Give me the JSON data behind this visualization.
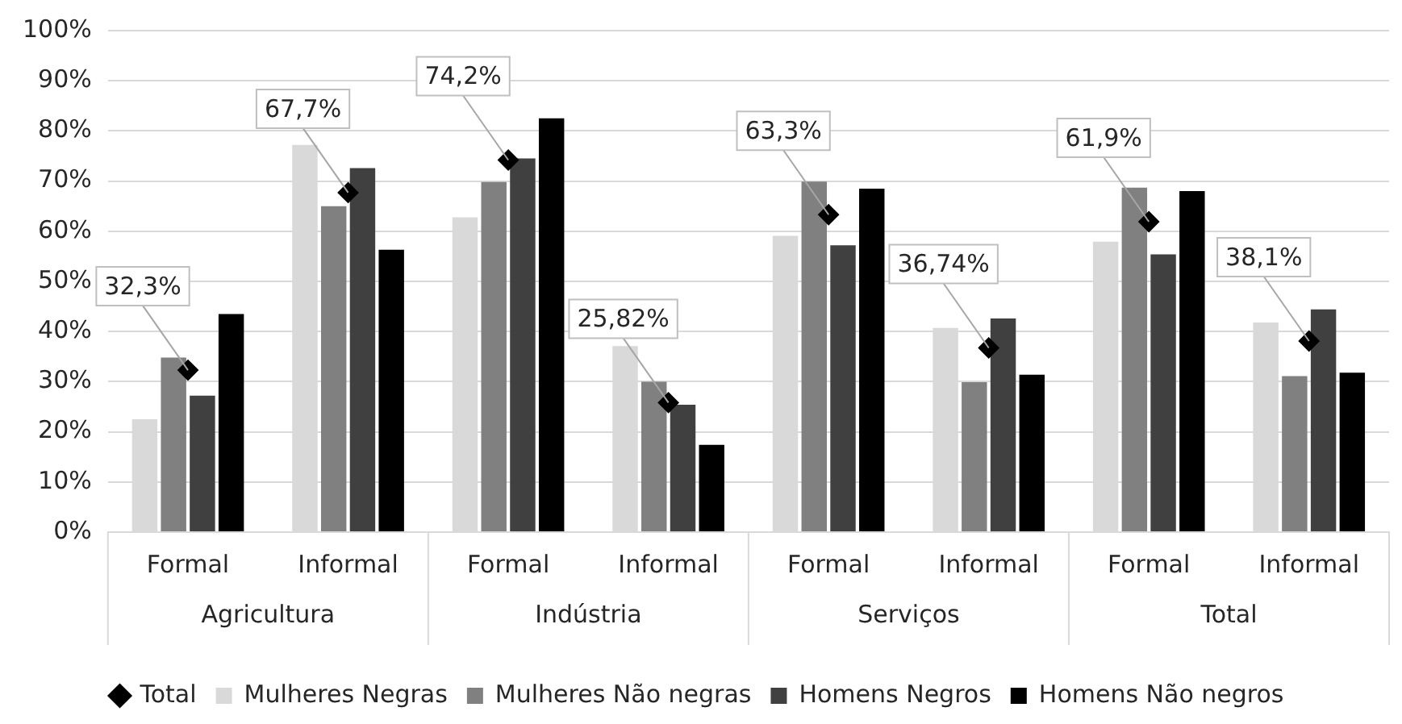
{
  "chart_data": {
    "type": "bar",
    "categories": [
      "Formal",
      "Informal",
      "Formal",
      "Informal",
      "Formal",
      "Informal",
      "Formal",
      "Informal"
    ],
    "annotations": [
      "Agricultura",
      "Indústria",
      "Serviços",
      "Total"
    ],
    "series": [
      {
        "name": "Mulheres Negras",
        "color": "#d9d9d9",
        "values": [
          22.5,
          77.2,
          62.8,
          37.1,
          59.1,
          40.7,
          57.9,
          41.8
        ]
      },
      {
        "name": "Mulheres Não negras",
        "color": "#808080",
        "values": [
          34.8,
          65.0,
          69.8,
          30.0,
          69.9,
          29.9,
          68.7,
          31.1
        ]
      },
      {
        "name": "Homens Negros",
        "color": "#404040",
        "values": [
          27.2,
          72.6,
          74.5,
          25.4,
          57.2,
          42.6,
          55.4,
          44.4
        ]
      },
      {
        "name": "Homens Não negros",
        "color": "#000000",
        "values": [
          43.5,
          56.3,
          82.5,
          17.4,
          68.5,
          31.4,
          68.0,
          31.8
        ]
      },
      {
        "name": "Total",
        "type": "scatter",
        "marker": "diamond",
        "color": "#000000",
        "values": [
          32.3,
          67.7,
          74.2,
          25.82,
          63.3,
          36.74,
          61.9,
          38.1
        ],
        "value_labels": [
          "32,3%",
          "67,7%",
          "74,2%",
          "25,82%",
          "63,3%",
          "36,74%",
          "61,9%",
          "38,1%"
        ]
      }
    ],
    "ylim": [
      0,
      100
    ],
    "yticks": [
      {
        "value": 0,
        "label": "0%"
      },
      {
        "value": 10,
        "label": "10%"
      },
      {
        "value": 20,
        "label": "20%"
      },
      {
        "value": 30,
        "label": "30%"
      },
      {
        "value": 40,
        "label": "40%"
      },
      {
        "value": 50,
        "label": "50%"
      },
      {
        "value": 60,
        "label": "60%"
      },
      {
        "value": 70,
        "label": "70%"
      },
      {
        "value": 80,
        "label": "80%"
      },
      {
        "value": 90,
        "label": "90%"
      },
      {
        "value": 100,
        "label": "100%"
      }
    ],
    "grid": "y",
    "legend": "bottom"
  }
}
